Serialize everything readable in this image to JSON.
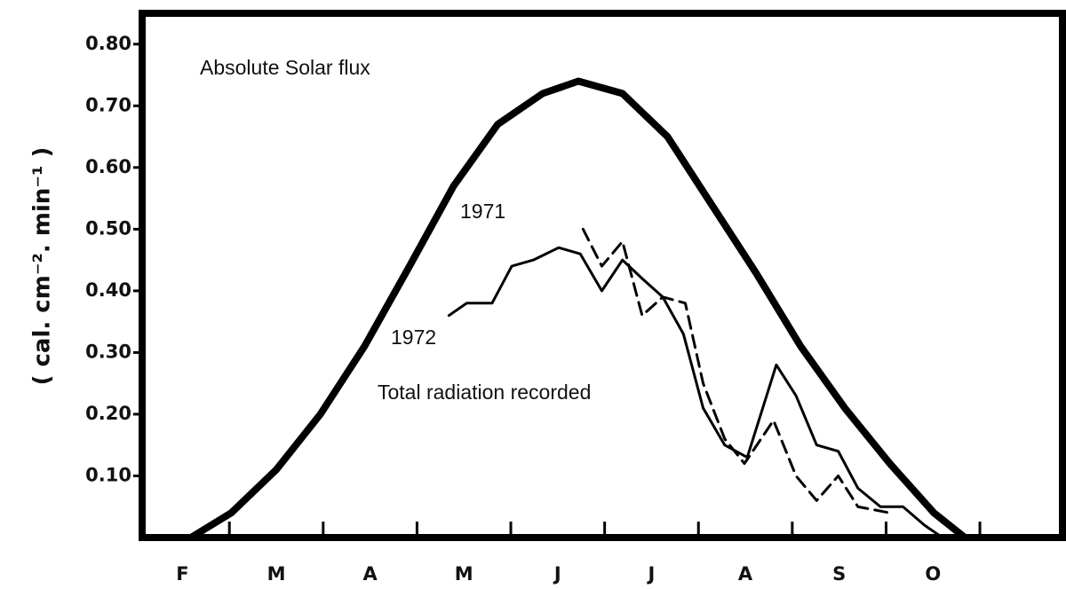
{
  "chart_data": {
    "type": "line",
    "ylabel": "( cal. cm⁻². min⁻¹ )",
    "annotations": [
      "Absolute Solar flux",
      "1971",
      "1972",
      "Total radiation recorded"
    ],
    "categories": [
      "F",
      "M",
      "A",
      "M",
      "J",
      "J",
      "A",
      "S",
      "O"
    ],
    "xlim": [
      -0.43,
      9.38
    ],
    "ylim": [
      0,
      0.85
    ],
    "yticks": [
      {
        "value": 0.1,
        "label": "0.10"
      },
      {
        "value": 0.2,
        "label": "0.20"
      },
      {
        "value": 0.3,
        "label": "0.30"
      },
      {
        "value": 0.4,
        "label": "0.40"
      },
      {
        "value": 0.5,
        "label": "0.50"
      },
      {
        "value": 0.6,
        "label": "0.60"
      },
      {
        "value": 0.7,
        "label": "0.70"
      },
      {
        "value": 0.8,
        "label": "0.80"
      }
    ],
    "series": [
      {
        "name": "Absolute Solar flux",
        "color": "#000000",
        "style": "thick",
        "x": [
          0.09,
          0.52,
          1.0,
          1.47,
          1.94,
          2.42,
          2.89,
          3.36,
          3.84,
          4.22,
          4.69,
          5.17,
          5.64,
          6.11,
          6.59,
          7.06,
          7.54,
          8.01,
          8.34
        ],
        "values": [
          0.0,
          0.04,
          0.11,
          0.2,
          0.31,
          0.44,
          0.57,
          0.67,
          0.72,
          0.74,
          0.72,
          0.65,
          0.54,
          0.43,
          0.31,
          0.21,
          0.12,
          0.04,
          0.0
        ]
      },
      {
        "name": "1972",
        "color": "#000000",
        "style": "solid",
        "x": [
          2.84,
          3.03,
          3.3,
          3.51,
          3.74,
          4.01,
          4.24,
          4.47,
          4.69,
          4.9,
          5.12,
          5.34,
          5.55,
          5.78,
          6.02,
          6.33,
          6.54,
          6.76,
          6.99,
          7.2,
          7.44,
          7.68,
          7.91,
          8.1
        ],
        "values": [
          0.36,
          0.38,
          0.38,
          0.44,
          0.45,
          0.47,
          0.46,
          0.4,
          0.45,
          0.42,
          0.39,
          0.33,
          0.21,
          0.15,
          0.13,
          0.28,
          0.23,
          0.15,
          0.14,
          0.08,
          0.05,
          0.05,
          0.02,
          0.0
        ]
      },
      {
        "name": "1971",
        "color": "#000000",
        "style": "dashed",
        "x": [
          4.27,
          4.47,
          4.69,
          4.9,
          5.12,
          5.36,
          5.55,
          5.78,
          5.99,
          6.3,
          6.54,
          6.76,
          6.99,
          7.2,
          7.54
        ],
        "values": [
          0.5,
          0.44,
          0.48,
          0.36,
          0.39,
          0.38,
          0.25,
          0.16,
          0.12,
          0.19,
          0.1,
          0.06,
          0.1,
          0.05,
          0.04
        ]
      }
    ]
  }
}
